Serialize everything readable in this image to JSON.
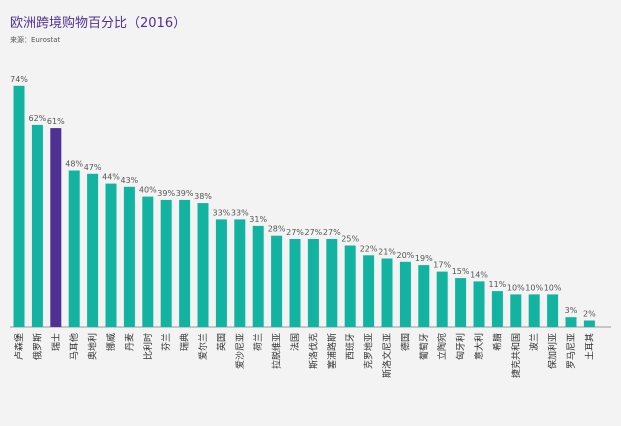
{
  "chart_data": {
    "type": "bar",
    "title": "欧洲跨境购物百分比（2016）",
    "source": "来源：Eurostat",
    "categories": [
      "卢森堡",
      "俄罗斯",
      "瑞士",
      "马耳他",
      "奥地利",
      "挪威",
      "丹麦",
      "比利时",
      "芬兰",
      "瑞典",
      "爱尔兰",
      "英国",
      "爱沙尼亚",
      "荷兰",
      "拉脱维亚",
      "法国",
      "斯洛伐克",
      "塞浦路斯",
      "西班牙",
      "克罗地亚",
      "斯洛文尼亚",
      "德国",
      "葡萄牙",
      "立陶宛",
      "匈牙利",
      "意大利",
      "希腊",
      "捷克共和国",
      "波兰",
      "保加利亚",
      "罗马尼亚",
      "土耳其"
    ],
    "values": [
      74,
      62,
      61,
      48,
      47,
      44,
      43,
      40,
      39,
      39,
      38,
      33,
      33,
      31,
      28,
      27,
      27,
      27,
      25,
      22,
      21,
      20,
      19,
      17,
      15,
      14,
      11,
      10,
      10,
      10,
      3,
      2
    ],
    "value_labels": [
      "74%",
      "62%",
      "61%",
      "48%",
      "47%",
      "44%",
      "43%",
      "40%",
      "39%",
      "39%",
      "38%",
      "33%",
      "33%",
      "31%",
      "28%",
      "27%",
      "27%",
      "27%",
      "25%",
      "22%",
      "21%",
      "20%",
      "19%",
      "17%",
      "15%",
      "14%",
      "11%",
      "10%",
      "10%",
      "10%",
      "3%",
      "2%"
    ],
    "highlight_index": 2,
    "colors": {
      "bar": "#12b3a0",
      "highlight": "#4e3192",
      "axis": "#999999"
    },
    "ylim": [
      0,
      80
    ],
    "grid": false,
    "legend": "none"
  }
}
